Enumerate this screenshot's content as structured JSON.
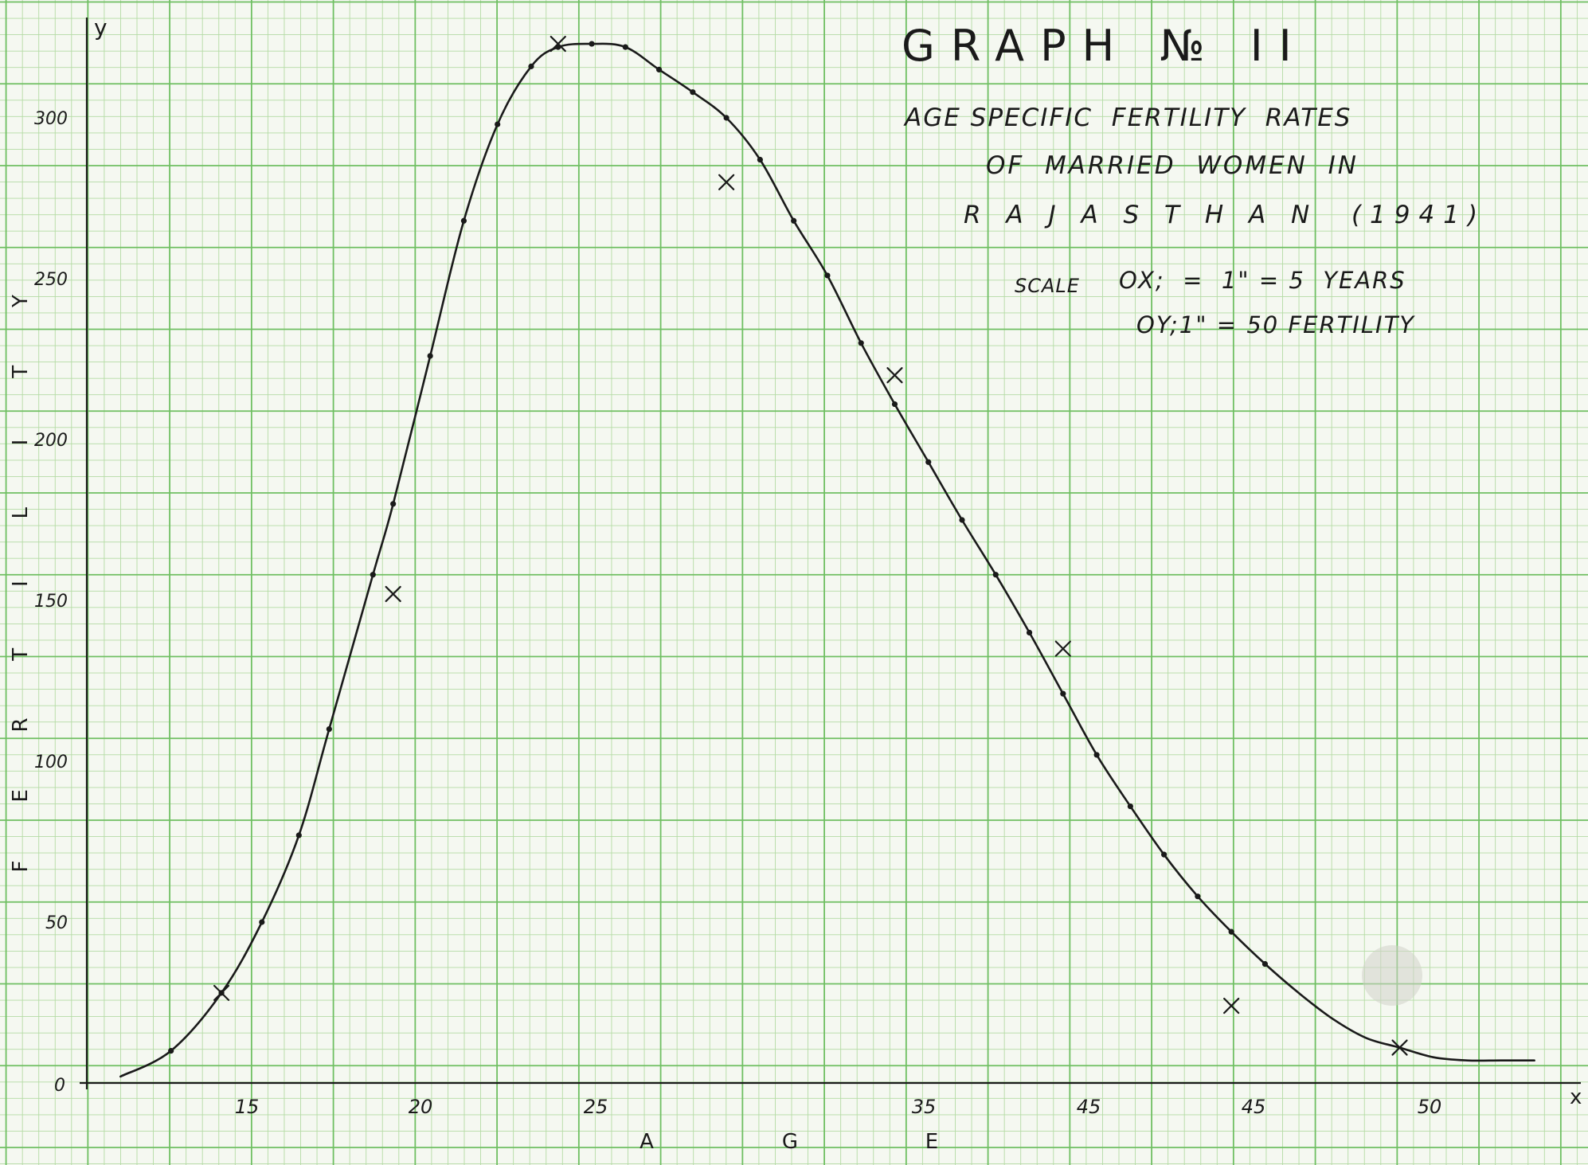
{
  "page": {
    "title": "GRAPH № II",
    "subtitle_lines": [
      "AGE SPECIFIC  FERTILITY  RATES",
      "OF  MARRIED  WOMEN  IN",
      "R A J A S T H A N  (1941)"
    ],
    "scale_label": "SCALE",
    "scale_lines": [
      "OX;  =  1\" = 5  YEARS",
      "OY;1\" = 50 FERTILITY"
    ]
  },
  "colors": {
    "paper": "#f5f8f1",
    "grid_minor": "#b4dba4",
    "grid_major": "#6fbf62",
    "ink": "#1a1a1a"
  },
  "chart_data": {
    "type": "line",
    "title": "GRAPH № II",
    "xlabel": "AGE",
    "ylabel": "FERTILITY",
    "x_axis_letter": "x",
    "y_axis_letter": "y",
    "origin_label": "0",
    "x_tick_labels": [
      "15",
      "20",
      "25",
      "35",
      "45",
      "45",
      "50"
    ],
    "y_tick_labels": [
      "50",
      "100",
      "150",
      "200",
      "250",
      "300"
    ],
    "y_ticks": [
      50,
      100,
      150,
      200,
      250,
      300
    ],
    "ylim": [
      0,
      330
    ],
    "grid": true,
    "smoothed_curve": [
      [
        1.0,
        2
      ],
      [
        2.5,
        10
      ],
      [
        4.0,
        28
      ],
      [
        5.2,
        50
      ],
      [
        6.3,
        77
      ],
      [
        7.2,
        110
      ],
      [
        8.5,
        158
      ],
      [
        9.1,
        180
      ],
      [
        10.2,
        226
      ],
      [
        11.2,
        268
      ],
      [
        12.2,
        298
      ],
      [
        13.2,
        316
      ],
      [
        14.0,
        322
      ],
      [
        15.0,
        323
      ],
      [
        16.0,
        322
      ],
      [
        17.0,
        315
      ],
      [
        18.0,
        308
      ],
      [
        19.0,
        300
      ],
      [
        20.0,
        287
      ],
      [
        21.0,
        268
      ],
      [
        22.0,
        251
      ],
      [
        23.0,
        230
      ],
      [
        24.0,
        211
      ],
      [
        25.0,
        193
      ],
      [
        26.0,
        175
      ],
      [
        27.0,
        158
      ],
      [
        28.0,
        140
      ],
      [
        29.0,
        121
      ],
      [
        30.0,
        102
      ],
      [
        31.0,
        86
      ],
      [
        32.0,
        71
      ],
      [
        33.0,
        58
      ],
      [
        34.0,
        47
      ],
      [
        35.0,
        37
      ],
      [
        36.0,
        28
      ],
      [
        37.0,
        20
      ],
      [
        38.0,
        14
      ],
      [
        39.0,
        11
      ],
      [
        40.0,
        8
      ],
      [
        41.0,
        7
      ],
      [
        42.0,
        7
      ],
      [
        43.0,
        7
      ]
    ],
    "observed_points": [
      [
        4.0,
        28
      ],
      [
        9.1,
        152
      ],
      [
        14.0,
        323
      ],
      [
        19.0,
        280
      ],
      [
        24.0,
        220
      ],
      [
        29.0,
        135
      ],
      [
        34.0,
        24
      ],
      [
        39.0,
        11
      ]
    ]
  }
}
